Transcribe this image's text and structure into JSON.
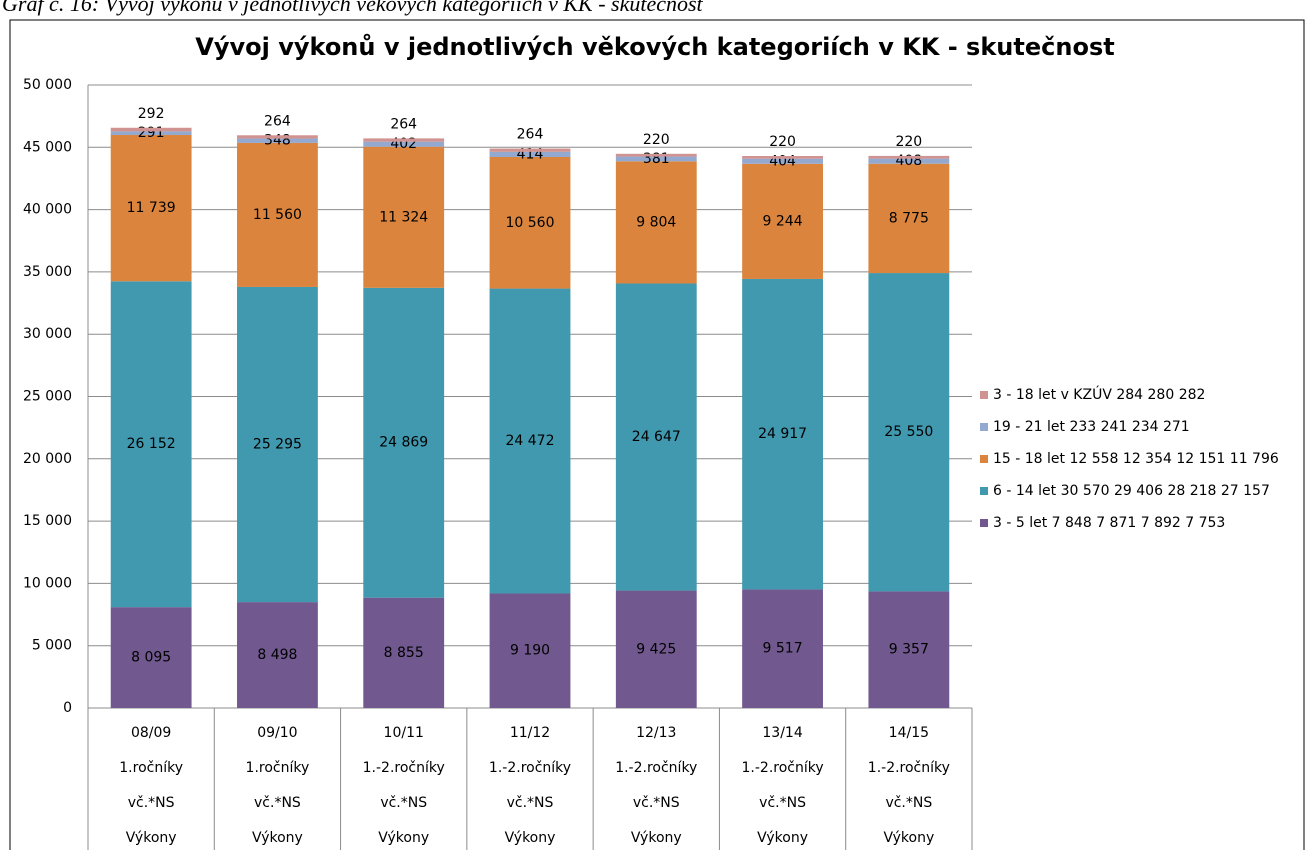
{
  "caption": "Graf č. 16: Vývoj výkonů v jednotlivých věkových kategoriích v KK - skutečnost",
  "chart_data": {
    "type": "stacked_bar",
    "title": "Vývoj výkonů v jednotlivých věkových kategoriích v KK - skutečnost",
    "categories": [
      [
        "08/09",
        "1.ročníky",
        "vč.*NS",
        "Výkony"
      ],
      [
        "09/10",
        "1.ročníky",
        "vč.*NS",
        "Výkony"
      ],
      [
        "10/11",
        "1.-2.ročníky",
        "vč.*NS",
        "Výkony"
      ],
      [
        "11/12",
        "1.-2.ročníky",
        "vč.*NS",
        "Výkony"
      ],
      [
        "12/13",
        "1.-2.ročníky",
        "vč.*NS",
        "Výkony"
      ],
      [
        "13/14",
        "1.-2.ročníky",
        "vč.*NS",
        "Výkony"
      ],
      [
        "14/15",
        "1.-2.ročníky",
        "vč.*NS",
        "Výkony"
      ]
    ],
    "series": [
      {
        "name": "3 - 5 let 7 848 7 871 7 892 7 753",
        "color": "#71598f",
        "values": [
          8095,
          8498,
          8855,
          9190,
          9425,
          9517,
          9357
        ],
        "value_labels": [
          "8 095",
          "8 498",
          "8 855",
          "9 190",
          "9 425",
          "9 517",
          "9 357"
        ]
      },
      {
        "name": "6 - 14 let 30 570 29 406 28 218 27 157",
        "color": "#4199af",
        "values": [
          26152,
          25295,
          24869,
          24472,
          24647,
          24917,
          25550
        ],
        "value_labels": [
          "26 152",
          "25 295",
          "24 869",
          "24 472",
          "24 647",
          "24 917",
          "25 550"
        ]
      },
      {
        "name": "15 - 18 let 12 558 12 354 12 151 11 796",
        "color": "#db843d",
        "values": [
          11739,
          11560,
          11324,
          10560,
          9804,
          9244,
          8775
        ],
        "value_labels": [
          "11 739",
          "11 560",
          "11 324",
          "10 560",
          "9 804",
          "9 244",
          "8 775"
        ]
      },
      {
        "name": "19 - 21 let 233 241 234 271",
        "color": "#93a9cf",
        "values": [
          291,
          348,
          402,
          414,
          381,
          404,
          408
        ]
      },
      {
        "name": "3 - 18 let v KZÚV 284 280 282",
        "color": "#d19392",
        "values": [
          292,
          264,
          264,
          264,
          220,
          220,
          220
        ]
      }
    ],
    "ylim": [
      0,
      50000
    ],
    "yticks": [
      0,
      {
        "value": 5000,
        "label": "5 000"
      },
      {
        "value": 10000,
        "label": "10 000"
      },
      {
        "value": 15000,
        "label": "15 000"
      },
      {
        "value": 20000,
        "label": "20 000"
      },
      {
        "value": 25000,
        "label": "25 000"
      },
      {
        "value": 30000,
        "label": "30 000"
      },
      {
        "value": 35000,
        "label": "35 000"
      },
      {
        "value": 40000,
        "label": "40 000"
      },
      {
        "value": 45000,
        "label": "45 000"
      },
      {
        "value": 50000,
        "label": "50 000"
      }
    ],
    "grid": true,
    "legend": "right"
  }
}
